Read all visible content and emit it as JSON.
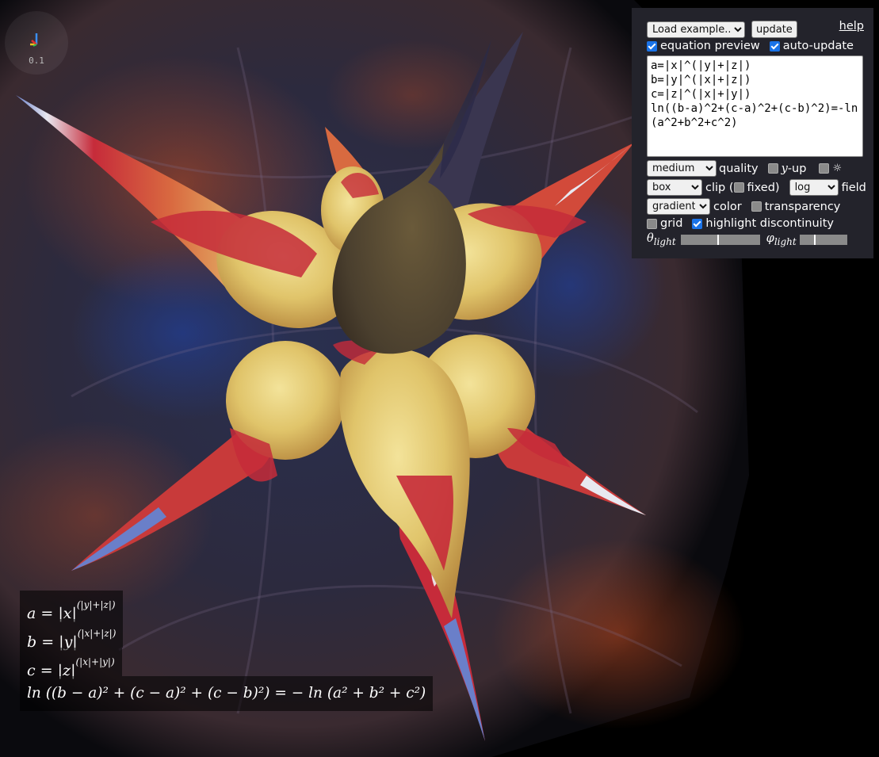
{
  "version_label": "0.1",
  "panel": {
    "example_select": "Load example...",
    "update_button": "update",
    "help_link": "help",
    "equation_preview_label": "equation preview",
    "equation_preview_checked": true,
    "auto_update_label": "auto-update",
    "auto_update_checked": true,
    "equation_text": "a=|x|^(|y|+|z|)\nb=|y|^(|x|+|z|)\nc=|z|^(|x|+|y|)\nln((b-a)^2+(c-a)^2+(c-b)^2)=-ln(a^2+b^2+c^2)",
    "quality_select": "medium",
    "quality_label": "quality",
    "yup_prefix": "y",
    "yup_label": "-up",
    "yup_checked": false,
    "light_toggle_checked": false,
    "light_symbol": "☼",
    "clip_select": "box",
    "clip_label": "clip (",
    "fixed_label": "fixed)",
    "fixed_checked": false,
    "field_select": "log",
    "field_label": "field",
    "color_select": "gradient",
    "color_label": "color",
    "transparency_label": "transparency",
    "transparency_checked": false,
    "grid_label": "grid",
    "grid_checked": false,
    "highlight_label": "highlight discontinuity",
    "highlight_checked": true,
    "theta_symbol": "θ",
    "theta_sub": "light",
    "theta_value": 0.46,
    "phi_symbol": "φ",
    "phi_sub": "light",
    "phi_value": 0.3
  },
  "formulas": {
    "line_a_lhs": "a",
    "line_a_rhs": "|x|",
    "line_a_exp": "(|y|+|z|)",
    "line_b_lhs": "b",
    "line_b_rhs": "|y|",
    "line_b_exp": "(|x|+|z|)",
    "line_c_lhs": "c",
    "line_c_rhs": "|z|",
    "line_c_exp": "(|x|+|y|)",
    "line_main": "ln ((b − a)² + (c − a)² + (c − b)²) = − ln (a² + b² + c²)"
  },
  "colors": {
    "panel_bg": "#23232b",
    "surface_yellow": "#e8d37a",
    "surface_red": "#c62b3a",
    "surface_blue": "#6a7fc9",
    "checkbox_blue": "#1a73e8"
  }
}
